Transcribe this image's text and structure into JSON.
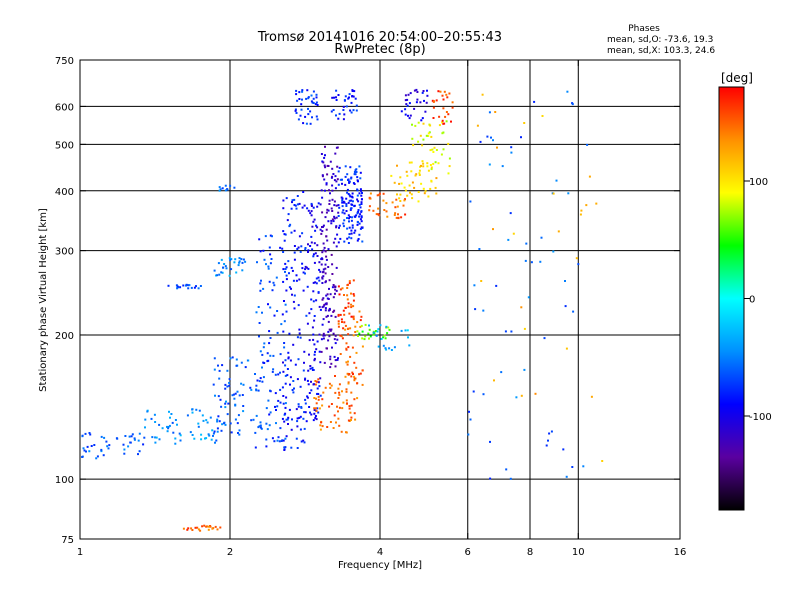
{
  "chart_data": {
    "type": "scatter",
    "title": "Tromsø 20141016 20:54:00–20:55:43",
    "subtitle": "RwPretec (8p)",
    "xlabel": "Frequency [MHz]",
    "ylabel": "Stationary phase Virtual Height [km]",
    "xscale": "log",
    "yscale": "log",
    "xlim": [
      1,
      16
    ],
    "ylim": [
      75,
      750
    ],
    "xticks": [
      1,
      2,
      4,
      6,
      8,
      10,
      16
    ],
    "yticks": [
      75,
      100,
      200,
      300,
      400,
      500,
      600,
      750
    ],
    "grid_x": [
      2,
      4,
      6,
      8,
      10
    ],
    "grid_y": [
      100,
      200,
      300,
      400,
      500,
      600
    ],
    "info": {
      "heading": "Phases",
      "line1": "mean, sd,O: -73.6, 19.3",
      "line2": "mean, sd,X: 103.3, 24.6"
    },
    "colorbar": {
      "label": "[deg]",
      "min": -180,
      "max": 180,
      "ticks": [
        100,
        0,
        -100
      ],
      "colors": [
        "#000000",
        "#5a00a0",
        "#0000ff",
        "#0090ff",
        "#00ffff",
        "#00ff00",
        "#ffff00",
        "#ff9000",
        "#ff0000"
      ]
    },
    "clusters": [
      {
        "x": [
          1.0,
          1.35
        ],
        "y": [
          110,
          125
        ],
        "phase": -60,
        "n": 45
      },
      {
        "x": [
          1.35,
          1.9
        ],
        "y": [
          118,
          140
        ],
        "phase": -45,
        "n": 60
      },
      {
        "x": [
          1.85,
          2.25
        ],
        "y": [
          120,
          180
        ],
        "phase": -60,
        "n": 70
      },
      {
        "x": [
          2.25,
          2.6
        ],
        "y": [
          115,
          330
        ],
        "phase": -70,
        "n": 120
      },
      {
        "x": [
          2.55,
          2.85
        ],
        "y": [
          115,
          400
        ],
        "phase": -85,
        "n": 140
      },
      {
        "x": [
          2.85,
          3.05
        ],
        "y": [
          130,
          380
        ],
        "phase": -95,
        "n": 110
      },
      {
        "x": [
          3.05,
          3.3
        ],
        "y": [
          170,
          500
        ],
        "phase": -115,
        "n": 170
      },
      {
        "x": [
          3.3,
          3.7
        ],
        "y": [
          310,
          450
        ],
        "phase": -80,
        "n": 140
      },
      {
        "x": [
          2.7,
          3.0
        ],
        "y": [
          550,
          650
        ],
        "phase": -75,
        "n": 40
      },
      {
        "x": [
          3.2,
          3.6
        ],
        "y": [
          560,
          650
        ],
        "phase": -85,
        "n": 35
      },
      {
        "x": [
          1.5,
          1.75
        ],
        "y": [
          250,
          255
        ],
        "phase": -70,
        "n": 18
      },
      {
        "x": [
          1.85,
          2.15
        ],
        "y": [
          265,
          290
        ],
        "phase": -45,
        "n": 30
      },
      {
        "x": [
          1.9,
          2.1
        ],
        "y": [
          400,
          410
        ],
        "phase": -60,
        "n": 10
      },
      {
        "x": [
          2.95,
          3.6
        ],
        "y": [
          125,
          165
        ],
        "phase": 145,
        "n": 70
      },
      {
        "x": [
          3.3,
          3.7
        ],
        "y": [
          150,
          230
        ],
        "phase": 150,
        "n": 55
      },
      {
        "x": [
          3.3,
          3.55
        ],
        "y": [
          205,
          260
        ],
        "phase": 160,
        "n": 35
      },
      {
        "x": [
          3.6,
          4.2
        ],
        "y": [
          195,
          210
        ],
        "phase": 60,
        "n": 25
      },
      {
        "x": [
          3.8,
          4.6
        ],
        "y": [
          185,
          210
        ],
        "phase": -30,
        "n": 20
      },
      {
        "x": [
          3.8,
          4.5
        ],
        "y": [
          350,
          400
        ],
        "phase": 150,
        "n": 35
      },
      {
        "x": [
          4.2,
          5.2
        ],
        "y": [
          380,
          460
        ],
        "phase": 110,
        "n": 50
      },
      {
        "x": [
          4.6,
          5.6
        ],
        "y": [
          430,
          560
        ],
        "phase": 90,
        "n": 40
      },
      {
        "x": [
          4.4,
          5.0
        ],
        "y": [
          560,
          650
        ],
        "phase": -100,
        "n": 30
      },
      {
        "x": [
          5.1,
          5.6
        ],
        "y": [
          550,
          650
        ],
        "phase": 160,
        "n": 25
      },
      {
        "x": [
          1.6,
          1.95
        ],
        "y": [
          78,
          80
        ],
        "phase": 150,
        "n": 22
      },
      {
        "x": [
          6.0,
          10.5
        ],
        "y": [
          100,
          650
        ],
        "phase": -60,
        "n": 60
      },
      {
        "x": [
          6.2,
          11.5
        ],
        "y": [
          100,
          650
        ],
        "phase": 120,
        "n": 25
      }
    ]
  }
}
